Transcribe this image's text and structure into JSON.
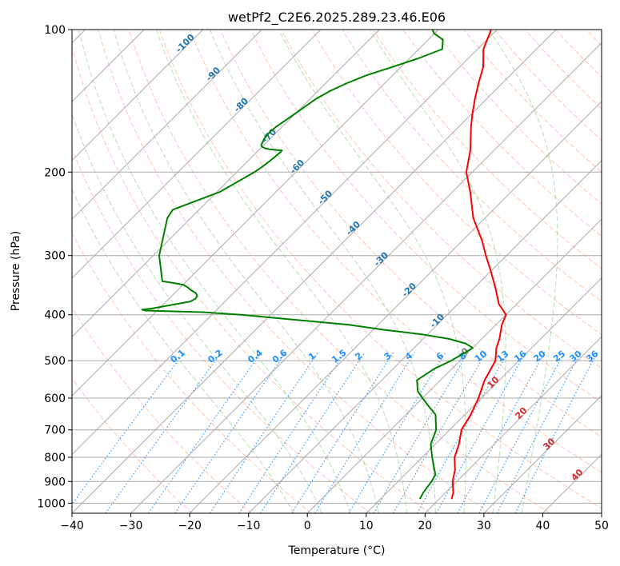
{
  "chart_data": {
    "type": "line",
    "title": "wetPf2_C2E6.2025.289.23.46.E06",
    "xlabel": "Temperature (°C)",
    "ylabel": "Pressure (hPa)",
    "xlim": [
      -40,
      50
    ],
    "ylim": [
      1050,
      100
    ],
    "yscale": "log",
    "skew": "skew-T log-p",
    "x_ticks": [
      -40,
      -30,
      -20,
      -10,
      0,
      10,
      20,
      30,
      40,
      50
    ],
    "x_tick_labels": [
      "−40",
      "−30",
      "−20",
      "−10",
      "0",
      "10",
      "20",
      "30",
      "40",
      "50"
    ],
    "y_ticks": [
      1000,
      900,
      800,
      700,
      600,
      500,
      400,
      300,
      200,
      100
    ],
    "y_tick_labels": [
      "1000",
      "900",
      "800",
      "700",
      "600",
      "500",
      "400",
      "300",
      "200",
      "100"
    ],
    "series": [
      {
        "name": "Temperature",
        "color": "#ff0000",
        "pressure": [
          980,
          950,
          900,
          850,
          800,
          750,
          700,
          650,
          600,
          550,
          500,
          470,
          450,
          420,
          400,
          380,
          350,
          320,
          300,
          280,
          250,
          220,
          200,
          180,
          160,
          150,
          140,
          130,
          120,
          110,
          105,
          100
        ],
        "temperature": [
          22.1,
          21.3,
          19.3,
          17.7,
          15.5,
          14,
          12,
          11,
          9.5,
          7.5,
          6,
          4,
          3,
          1,
          0,
          -3,
          -6.5,
          -10.5,
          -13.5,
          -16.5,
          -22,
          -27,
          -31,
          -34,
          -38,
          -40,
          -42,
          -44,
          -46,
          -49,
          -50,
          -51
        ]
      },
      {
        "name": "Dewpoint",
        "color": "#008000",
        "pressure": [
          980,
          950,
          900,
          870,
          850,
          800,
          750,
          700,
          650,
          620,
          600,
          580,
          550,
          520,
          500,
          470,
          460,
          450,
          440,
          430,
          420,
          410,
          400,
          395,
          392,
          390,
          388,
          385,
          375,
          370,
          365,
          360,
          355,
          350,
          346,
          344,
          342,
          340,
          300,
          250,
          240,
          220,
          200,
          195,
          190,
          185,
          182,
          180,
          179,
          178,
          177,
          176,
          175,
          170,
          165,
          160,
          155,
          150,
          145,
          140,
          135,
          130,
          125,
          120,
          115,
          110,
          105,
          102,
          100
        ],
        "temperature": [
          16.7,
          16.2,
          15.7,
          15.2,
          14.2,
          11.7,
          9.2,
          7.7,
          5,
          2,
          0,
          -2,
          -4,
          -3,
          -1.5,
          0,
          -2,
          -5.5,
          -11,
          -18.5,
          -25,
          -35,
          -45,
          -52,
          -62,
          -62.7,
          -61.2,
          -60,
          -55.9,
          -55.5,
          -55.7,
          -56.4,
          -57.7,
          -58.8,
          -59.9,
          -61.1,
          -62.5,
          -64.1,
          -69,
          -74,
          -74.5,
          -69.5,
          -67,
          -66.6,
          -66.3,
          -66.1,
          -66,
          -66,
          -68.3,
          -69.3,
          -69.9,
          -70.3,
          -70.5,
          -71,
          -71.2,
          -71,
          -70.5,
          -70,
          -69.5,
          -69,
          -68,
          -66.5,
          -64.5,
          -61.5,
          -58.5,
          -56,
          -57.5,
          -60,
          -61
        ]
      }
    ],
    "dry_adiabats_K": [
      250,
      260,
      270,
      280,
      290,
      300,
      310,
      320,
      330,
      340,
      350,
      360,
      370,
      380,
      390,
      400,
      410,
      420,
      430,
      440,
      450,
      460,
      470,
      480,
      490,
      500,
      510,
      520,
      530,
      540,
      550,
      560
    ],
    "moist_adiabats_C": [
      -5,
      0,
      5,
      10,
      15,
      20,
      25,
      30,
      35
    ],
    "mixing_ratio_lines_gkg": [
      0.1,
      0.2,
      0.4,
      0.6,
      1,
      1.5,
      2,
      3,
      4,
      6,
      8,
      10,
      13,
      16,
      20,
      25,
      30,
      36
    ],
    "mixing_ratio_labels": [
      "0.1",
      "0.2",
      "0.4",
      "0.6",
      "1",
      "1.5",
      "2",
      "3",
      "4",
      "6",
      "8",
      "10",
      "13",
      "16",
      "20",
      "25",
      "30",
      "36"
    ],
    "isotherm_label_values": [
      -100,
      -90,
      -80,
      -70,
      -60,
      -50,
      -40,
      -30,
      -20,
      -10,
      0,
      10,
      20,
      30,
      40
    ],
    "isotherm_labels": [
      "-100",
      "-90",
      "-80",
      "-70",
      "-60",
      "-50",
      "-40",
      "-30",
      "-20",
      "-10",
      "0",
      "10",
      "20",
      "30",
      "40"
    ],
    "colors": {
      "temperature": "#ff0000",
      "dewpoint": "#008000",
      "isotherm_cold_label": "#1f77b4",
      "isotherm_zero_label": "#808080",
      "isotherm_warm_label": "#d62728",
      "mixing_ratio": "#1e90ff",
      "dry_adiabat": "#ff7f50",
      "moist_adiabat": "#2ca02c",
      "grid": "#aaaaaa",
      "background": "#ffffff"
    }
  }
}
